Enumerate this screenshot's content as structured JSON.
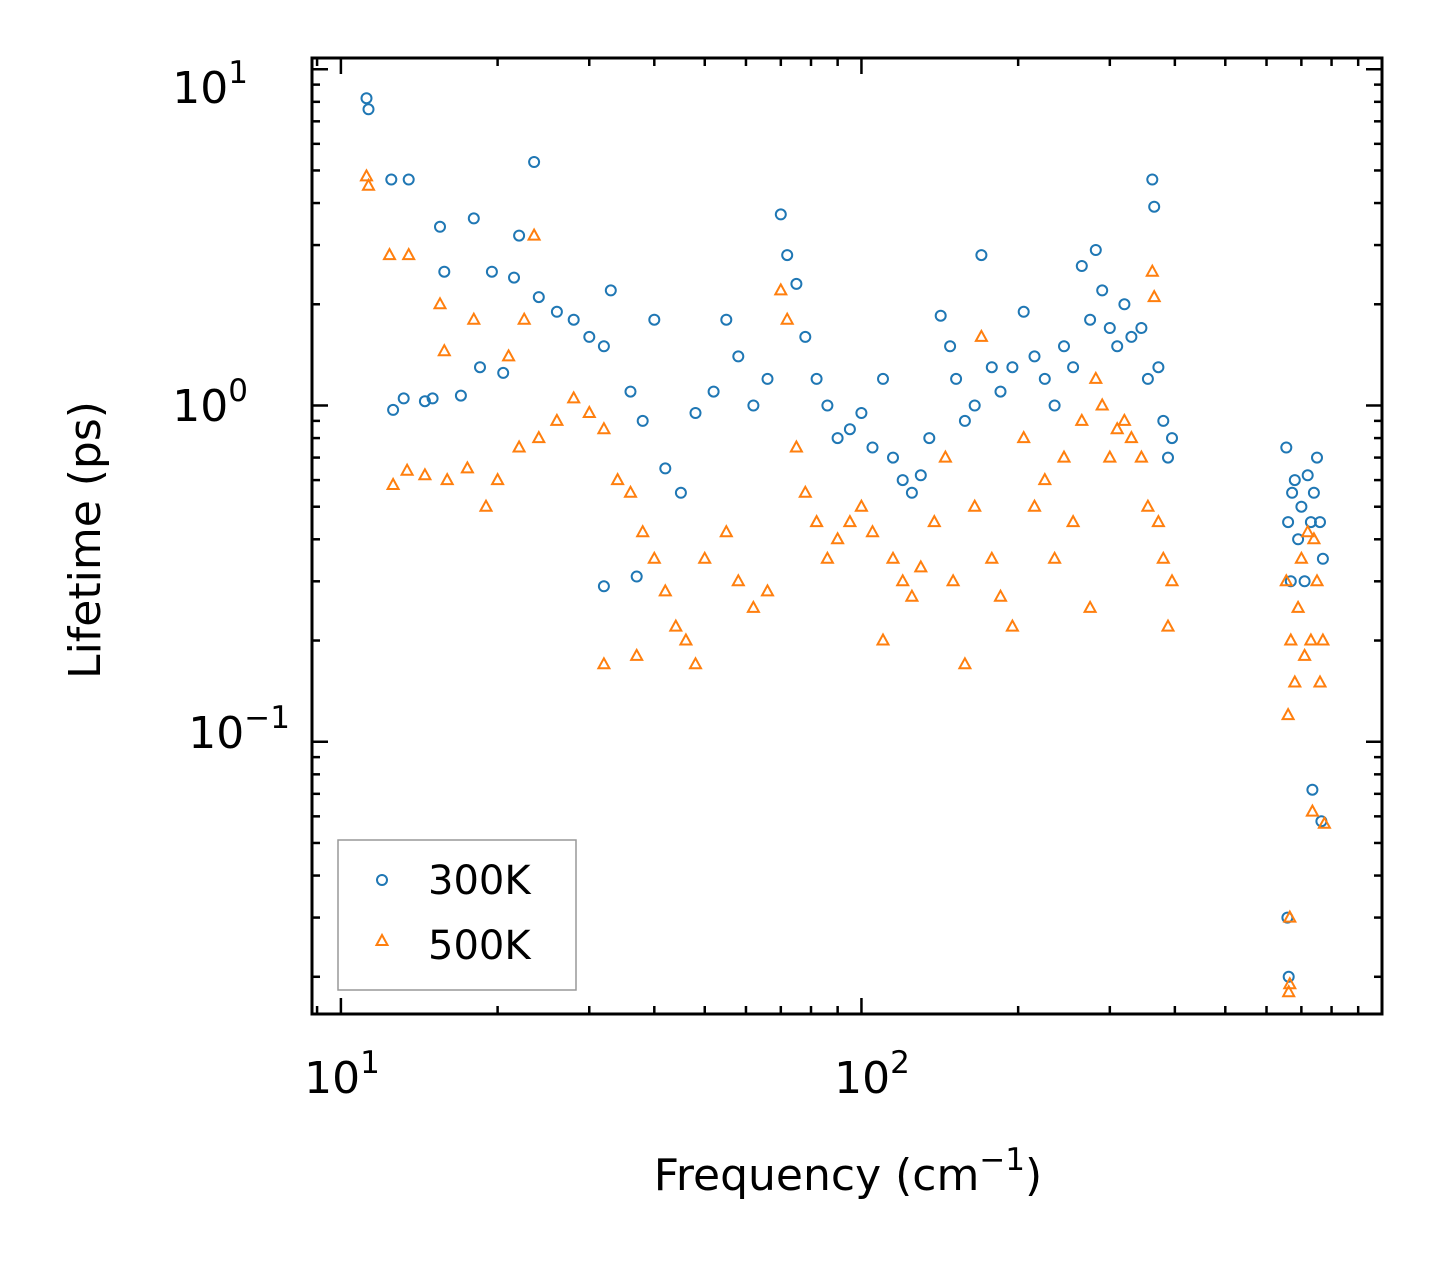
{
  "chart_data": {
    "type": "scatter",
    "title": "",
    "xlabel": "Frequency (cm",
    "xlabel_superscript": "−1",
    "xlabel_suffix": ")",
    "ylabel": "Lifetime (ps)",
    "xscale": "log",
    "yscale": "log",
    "xlim": [
      8.8,
      1000
    ],
    "ylim": [
      0.0155,
      10.8
    ],
    "x_ticks": [
      {
        "value": 10,
        "base": "10",
        "exp": "1"
      },
      {
        "value": 100,
        "base": "10",
        "exp": "2"
      }
    ],
    "y_ticks": [
      {
        "value": 10,
        "base": "10",
        "exp": "1"
      },
      {
        "value": 1,
        "base": "10",
        "exp": "0"
      },
      {
        "value": 0.1,
        "base": "10",
        "exp": "−1"
      }
    ],
    "legend": {
      "location": "lower-left",
      "entries": [
        {
          "label": "300K",
          "marker": "circle",
          "color": "#1f77b4"
        },
        {
          "label": "500K",
          "marker": "triangle",
          "color": "#ff7f0e"
        }
      ]
    },
    "series": [
      {
        "name": "300K",
        "marker": "circle",
        "color": "#1f77b4",
        "points": [
          [
            11.2,
            8.2
          ],
          [
            11.3,
            7.6
          ],
          [
            12.5,
            4.7
          ],
          [
            13.5,
            4.7
          ],
          [
            23.5,
            5.3
          ],
          [
            15.5,
            3.4
          ],
          [
            18,
            3.6
          ],
          [
            22,
            3.2
          ],
          [
            15.8,
            2.5
          ],
          [
            19.5,
            2.5
          ],
          [
            12.6,
            0.97
          ],
          [
            13.2,
            1.05
          ],
          [
            14.5,
            1.03
          ],
          [
            15,
            1.05
          ],
          [
            17,
            1.07
          ],
          [
            18.5,
            1.3
          ],
          [
            20.5,
            1.25
          ],
          [
            21.5,
            2.4
          ],
          [
            24,
            2.1
          ],
          [
            26,
            1.9
          ],
          [
            28,
            1.8
          ],
          [
            30,
            1.6
          ],
          [
            32,
            1.5
          ],
          [
            33,
            2.2
          ],
          [
            36,
            1.1
          ],
          [
            38,
            0.9
          ],
          [
            40,
            1.8
          ],
          [
            32,
            0.29
          ],
          [
            37,
            0.31
          ],
          [
            42,
            0.65
          ],
          [
            45,
            0.55
          ],
          [
            48,
            0.95
          ],
          [
            52,
            1.1
          ],
          [
            55,
            1.8
          ],
          [
            58,
            1.4
          ],
          [
            62,
            1.0
          ],
          [
            66,
            1.2
          ],
          [
            70,
            3.7
          ],
          [
            72,
            2.8
          ],
          [
            75,
            2.3
          ],
          [
            78,
            1.6
          ],
          [
            82,
            1.2
          ],
          [
            86,
            1.0
          ],
          [
            90,
            0.8
          ],
          [
            95,
            0.85
          ],
          [
            100,
            0.95
          ],
          [
            105,
            0.75
          ],
          [
            110,
            1.2
          ],
          [
            115,
            0.7
          ],
          [
            120,
            0.6
          ],
          [
            125,
            0.55
          ],
          [
            130,
            0.62
          ],
          [
            135,
            0.8
          ],
          [
            142,
            1.85
          ],
          [
            148,
            1.5
          ],
          [
            152,
            1.2
          ],
          [
            158,
            0.9
          ],
          [
            165,
            1.0
          ],
          [
            170,
            2.8
          ],
          [
            178,
            1.3
          ],
          [
            185,
            1.1
          ],
          [
            195,
            1.3
          ],
          [
            205,
            1.9
          ],
          [
            215,
            1.4
          ],
          [
            225,
            1.2
          ],
          [
            235,
            1.0
          ],
          [
            245,
            1.5
          ],
          [
            255,
            1.3
          ],
          [
            265,
            2.6
          ],
          [
            275,
            1.8
          ],
          [
            282,
            2.9
          ],
          [
            290,
            2.2
          ],
          [
            300,
            1.7
          ],
          [
            310,
            1.5
          ],
          [
            320,
            2.0
          ],
          [
            330,
            1.6
          ],
          [
            345,
            1.7
          ],
          [
            355,
            1.2
          ],
          [
            362,
            4.7
          ],
          [
            365,
            3.9
          ],
          [
            372,
            1.3
          ],
          [
            380,
            0.9
          ],
          [
            388,
            0.7
          ],
          [
            395,
            0.8
          ],
          [
            655,
            0.75
          ],
          [
            660,
            0.45
          ],
          [
            668,
            0.3
          ],
          [
            672,
            0.55
          ],
          [
            680,
            0.6
          ],
          [
            690,
            0.4
          ],
          [
            700,
            0.5
          ],
          [
            710,
            0.3
          ],
          [
            720,
            0.62
          ],
          [
            730,
            0.45
          ],
          [
            740,
            0.55
          ],
          [
            750,
            0.7
          ],
          [
            760,
            0.45
          ],
          [
            770,
            0.35
          ],
          [
            658,
            0.03
          ],
          [
            662,
            0.02
          ],
          [
            735,
            0.072
          ],
          [
            765,
            0.058
          ]
        ]
      },
      {
        "name": "500K",
        "marker": "triangle",
        "color": "#ff7f0e",
        "points": [
          [
            11.2,
            4.8
          ],
          [
            11.3,
            4.5
          ],
          [
            12.4,
            2.8
          ],
          [
            13.5,
            2.8
          ],
          [
            23.5,
            3.2
          ],
          [
            15.5,
            2.0
          ],
          [
            18,
            1.8
          ],
          [
            21,
            1.4
          ],
          [
            22.5,
            1.8
          ],
          [
            15.8,
            1.45
          ],
          [
            12.6,
            0.58
          ],
          [
            13.4,
            0.64
          ],
          [
            14.5,
            0.62
          ],
          [
            16,
            0.6
          ],
          [
            17.5,
            0.65
          ],
          [
            19,
            0.5
          ],
          [
            20,
            0.6
          ],
          [
            22,
            0.75
          ],
          [
            24,
            0.8
          ],
          [
            26,
            0.9
          ],
          [
            28,
            1.05
          ],
          [
            30,
            0.95
          ],
          [
            32,
            0.85
          ],
          [
            34,
            0.6
          ],
          [
            36,
            0.55
          ],
          [
            38,
            0.42
          ],
          [
            40,
            0.35
          ],
          [
            42,
            0.28
          ],
          [
            44,
            0.22
          ],
          [
            46,
            0.2
          ],
          [
            48,
            0.17
          ],
          [
            32,
            0.17
          ],
          [
            37,
            0.18
          ],
          [
            50,
            0.35
          ],
          [
            55,
            0.42
          ],
          [
            58,
            0.3
          ],
          [
            62,
            0.25
          ],
          [
            66,
            0.28
          ],
          [
            70,
            2.2
          ],
          [
            72,
            1.8
          ],
          [
            75,
            0.75
          ],
          [
            78,
            0.55
          ],
          [
            82,
            0.45
          ],
          [
            86,
            0.35
          ],
          [
            90,
            0.4
          ],
          [
            95,
            0.45
          ],
          [
            100,
            0.5
          ],
          [
            105,
            0.42
          ],
          [
            110,
            0.2
          ],
          [
            115,
            0.35
          ],
          [
            120,
            0.3
          ],
          [
            125,
            0.27
          ],
          [
            130,
            0.33
          ],
          [
            138,
            0.45
          ],
          [
            145,
            0.7
          ],
          [
            150,
            0.3
          ],
          [
            158,
            0.17
          ],
          [
            165,
            0.5
          ],
          [
            170,
            1.6
          ],
          [
            178,
            0.35
          ],
          [
            185,
            0.27
          ],
          [
            195,
            0.22
          ],
          [
            205,
            0.8
          ],
          [
            215,
            0.5
          ],
          [
            225,
            0.6
          ],
          [
            235,
            0.35
          ],
          [
            245,
            0.7
          ],
          [
            255,
            0.45
          ],
          [
            265,
            0.9
          ],
          [
            275,
            0.25
          ],
          [
            282,
            1.2
          ],
          [
            290,
            1.0
          ],
          [
            300,
            0.7
          ],
          [
            310,
            0.85
          ],
          [
            320,
            0.9
          ],
          [
            330,
            0.8
          ],
          [
            345,
            0.7
          ],
          [
            355,
            0.5
          ],
          [
            362,
            2.5
          ],
          [
            365,
            2.1
          ],
          [
            372,
            0.45
          ],
          [
            380,
            0.35
          ],
          [
            388,
            0.22
          ],
          [
            395,
            0.3
          ],
          [
            655,
            0.3
          ],
          [
            660,
            0.12
          ],
          [
            665,
            0.03
          ],
          [
            668,
            0.2
          ],
          [
            680,
            0.15
          ],
          [
            690,
            0.25
          ],
          [
            700,
            0.35
          ],
          [
            710,
            0.18
          ],
          [
            720,
            0.42
          ],
          [
            730,
            0.2
          ],
          [
            740,
            0.4
          ],
          [
            750,
            0.3
          ],
          [
            760,
            0.15
          ],
          [
            770,
            0.2
          ],
          [
            662,
            0.018
          ],
          [
            665,
            0.019
          ],
          [
            735,
            0.062
          ],
          [
            775,
            0.057
          ]
        ]
      }
    ]
  }
}
